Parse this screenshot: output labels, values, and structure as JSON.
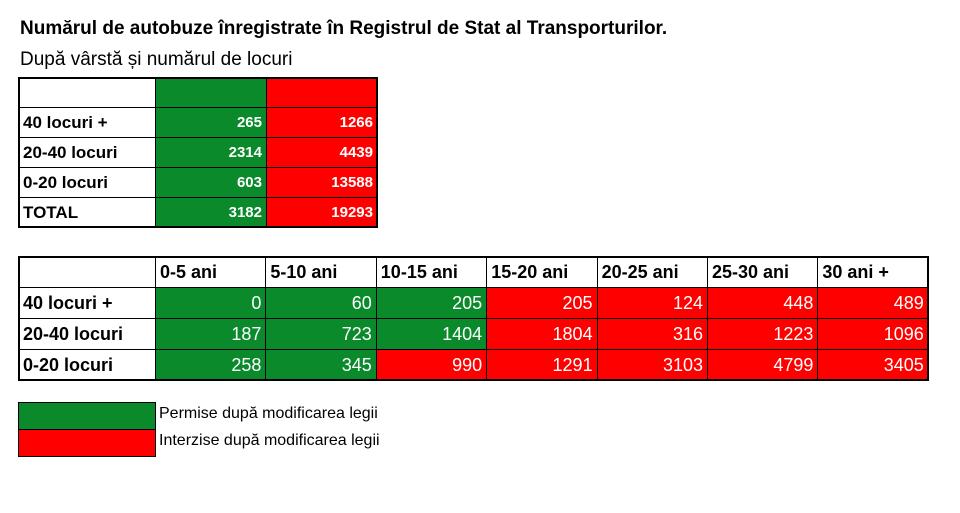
{
  "header": {
    "title": "Numărul de autobuze înregistrate în Registrul de Stat al Transporturilor.",
    "subtitle": "După vârstă și numărul de locuri"
  },
  "summary_table": {
    "column_colors": [
      "#0a8a2a",
      "#ff0000"
    ],
    "rows": [
      {
        "label": "40 locuri +",
        "values": [
          265,
          1266
        ]
      },
      {
        "label": "20-40 locuri",
        "values": [
          2314,
          4439
        ]
      },
      {
        "label": "0-20 locuri",
        "values": [
          603,
          13588
        ]
      },
      {
        "label": "TOTAL",
        "values": [
          3182,
          19293
        ]
      }
    ]
  },
  "age_table": {
    "columns": [
      "0-5 ani",
      "5-10 ani",
      "10-15 ani",
      "15-20 ani",
      "20-25 ani",
      "25-30 ani",
      "30 ani +"
    ],
    "rows": [
      {
        "label": "40 locuri +",
        "values": [
          0,
          60,
          205,
          205,
          124,
          448,
          489
        ],
        "colors": [
          "#0a8a2a",
          "#0a8a2a",
          "#0a8a2a",
          "#ff0000",
          "#ff0000",
          "#ff0000",
          "#ff0000"
        ]
      },
      {
        "label": "20-40 locuri",
        "values": [
          187,
          723,
          1404,
          1804,
          316,
          1223,
          1096
        ],
        "colors": [
          "#0a8a2a",
          "#0a8a2a",
          "#0a8a2a",
          "#ff0000",
          "#ff0000",
          "#ff0000",
          "#ff0000"
        ]
      },
      {
        "label": "0-20 locuri",
        "values": [
          258,
          345,
          990,
          1291,
          3103,
          4799,
          3405
        ],
        "colors": [
          "#0a8a2a",
          "#0a8a2a",
          "#ff0000",
          "#ff0000",
          "#ff0000",
          "#ff0000",
          "#ff0000"
        ]
      }
    ]
  },
  "legend": [
    {
      "label": "Permise după modificarea legii",
      "color": "#0a8a2a"
    },
    {
      "label": "Interzise după modificarea legii",
      "color": "#ff0000"
    }
  ]
}
